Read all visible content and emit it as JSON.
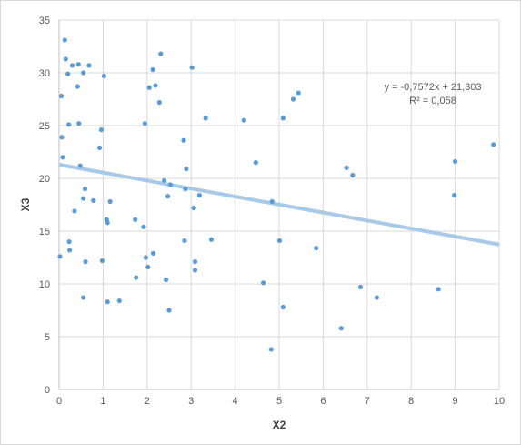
{
  "chart_data": {
    "type": "scatter",
    "xlabel": "X2",
    "ylabel": "X3",
    "xlim": [
      0,
      10
    ],
    "ylim": [
      0,
      35
    ],
    "x_ticks": [
      0,
      1,
      2,
      3,
      4,
      5,
      6,
      7,
      8,
      9,
      10
    ],
    "y_ticks": [
      0,
      5,
      10,
      15,
      20,
      25,
      30,
      35
    ],
    "grid": true,
    "marker_color": "#5b9bd5",
    "trendline_color": "#a9c9e8",
    "trendline": {
      "slope": -0.7572,
      "intercept": 21.303,
      "equation": "y = -0,7572x + 21,303",
      "r_squared": "R² = 0,058"
    },
    "points": [
      [
        0.02,
        12.6
      ],
      [
        0.05,
        27.8
      ],
      [
        0.06,
        23.9
      ],
      [
        0.08,
        22.0
      ],
      [
        0.13,
        33.1
      ],
      [
        0.15,
        31.3
      ],
      [
        0.2,
        29.9
      ],
      [
        0.22,
        25.1
      ],
      [
        0.23,
        14.0
      ],
      [
        0.24,
        13.2
      ],
      [
        0.3,
        30.7
      ],
      [
        0.35,
        16.9
      ],
      [
        0.42,
        28.7
      ],
      [
        0.44,
        30.8
      ],
      [
        0.45,
        25.2
      ],
      [
        0.48,
        21.2
      ],
      [
        0.55,
        30.0
      ],
      [
        0.55,
        18.1
      ],
      [
        0.55,
        8.7
      ],
      [
        0.59,
        19.0
      ],
      [
        0.6,
        12.1
      ],
      [
        0.68,
        30.7
      ],
      [
        0.78,
        17.9
      ],
      [
        0.92,
        22.9
      ],
      [
        0.96,
        24.6
      ],
      [
        0.98,
        12.2
      ],
      [
        1.02,
        29.7
      ],
      [
        1.08,
        16.1
      ],
      [
        1.1,
        15.8
      ],
      [
        1.1,
        8.3
      ],
      [
        1.16,
        17.8
      ],
      [
        1.37,
        8.4
      ],
      [
        1.73,
        16.1
      ],
      [
        1.75,
        10.6
      ],
      [
        1.92,
        15.4
      ],
      [
        1.95,
        25.2
      ],
      [
        1.97,
        12.5
      ],
      [
        2.02,
        11.6
      ],
      [
        2.05,
        28.6
      ],
      [
        2.13,
        30.3
      ],
      [
        2.14,
        12.9
      ],
      [
        2.19,
        28.8
      ],
      [
        2.28,
        27.2
      ],
      [
        2.31,
        31.8
      ],
      [
        2.39,
        19.8
      ],
      [
        2.43,
        10.4
      ],
      [
        2.47,
        18.3
      ],
      [
        2.5,
        7.5
      ],
      [
        2.53,
        19.4
      ],
      [
        2.83,
        23.6
      ],
      [
        2.85,
        14.1
      ],
      [
        2.87,
        19.0
      ],
      [
        2.89,
        20.9
      ],
      [
        3.02,
        30.5
      ],
      [
        3.06,
        17.2
      ],
      [
        3.09,
        12.1
      ],
      [
        3.09,
        11.3
      ],
      [
        3.19,
        18.4
      ],
      [
        3.33,
        25.7
      ],
      [
        3.46,
        14.2
      ],
      [
        4.2,
        25.5
      ],
      [
        4.47,
        21.5
      ],
      [
        4.64,
        10.1
      ],
      [
        4.82,
        3.8
      ],
      [
        4.84,
        17.8
      ],
      [
        5.01,
        14.1
      ],
      [
        5.09,
        25.7
      ],
      [
        5.09,
        7.8
      ],
      [
        5.32,
        27.5
      ],
      [
        5.44,
        28.1
      ],
      [
        5.84,
        13.4
      ],
      [
        6.41,
        5.8
      ],
      [
        6.53,
        21.0
      ],
      [
        6.67,
        20.3
      ],
      [
        6.85,
        9.7
      ],
      [
        7.22,
        8.7
      ],
      [
        8.62,
        9.5
      ],
      [
        8.98,
        18.4
      ],
      [
        9.0,
        21.6
      ],
      [
        9.87,
        23.2
      ]
    ]
  }
}
